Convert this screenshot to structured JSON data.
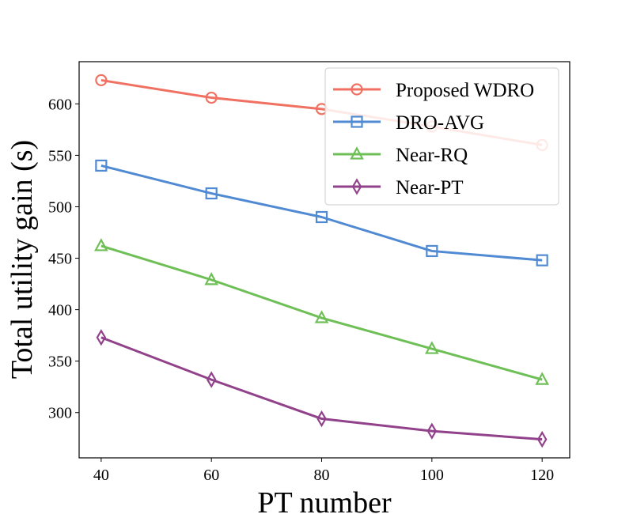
{
  "chart_data": {
    "type": "line",
    "x": [
      40,
      60,
      80,
      100,
      120
    ],
    "series": [
      {
        "name": "Proposed WDRO",
        "values": [
          623,
          606,
          595,
          578,
          560
        ],
        "color": "#f07161",
        "marker": "circle"
      },
      {
        "name": "DRO-AVG",
        "values": [
          540,
          513,
          490,
          457,
          448
        ],
        "color": "#508ad2",
        "marker": "square"
      },
      {
        "name": "Near-RQ",
        "values": [
          462,
          429,
          392,
          362,
          332
        ],
        "color": "#6fbf57",
        "marker": "triangle"
      },
      {
        "name": "Near-PT",
        "values": [
          373,
          332,
          294,
          282,
          274
        ],
        "color": "#91428a",
        "marker": "diamond"
      }
    ],
    "xlabel": "PT number",
    "ylabel": "Total utility gain (s)",
    "xticks": [
      40,
      60,
      80,
      100,
      120
    ],
    "yticks": [
      300,
      350,
      400,
      450,
      500,
      550,
      600
    ],
    "xlim": [
      36,
      125
    ],
    "ylim": [
      256,
      641
    ],
    "grid": false,
    "legend_position": "top-right"
  }
}
